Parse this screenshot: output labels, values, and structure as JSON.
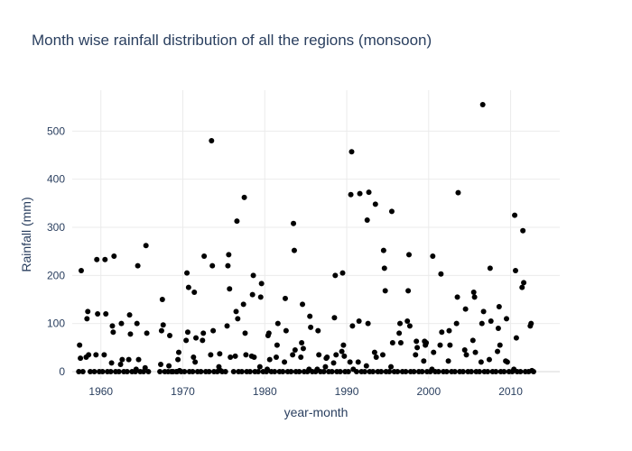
{
  "chart_data": {
    "type": "scatter",
    "title": "Month wise rainfall distribution of all the regions (monsoon)",
    "xlabel": "year-month",
    "ylabel": "Rainfall (mm)",
    "xlim": [
      1956.5,
      2016
    ],
    "ylim": [
      -15,
      585
    ],
    "xticks": [
      1960,
      1970,
      1980,
      1990,
      2000,
      2010
    ],
    "yticks": [
      0,
      100,
      200,
      300,
      400,
      500
    ],
    "grid": true,
    "legend": "none",
    "marker_color": "#000000",
    "points": [
      [
        1957.3,
        0
      ],
      [
        1957.4,
        55
      ],
      [
        1957.5,
        28
      ],
      [
        1957.6,
        210
      ],
      [
        1957.8,
        0
      ],
      [
        1958.2,
        30
      ],
      [
        1958.3,
        110
      ],
      [
        1958.4,
        125
      ],
      [
        1958.5,
        35
      ],
      [
        1958.7,
        0
      ],
      [
        1959.2,
        0
      ],
      [
        1959.4,
        35
      ],
      [
        1959.5,
        233
      ],
      [
        1959.6,
        120
      ],
      [
        1959.8,
        0
      ],
      [
        1960.2,
        0
      ],
      [
        1960.4,
        35
      ],
      [
        1960.5,
        233
      ],
      [
        1960.6,
        120
      ],
      [
        1960.8,
        0
      ],
      [
        1961.2,
        0
      ],
      [
        1961.3,
        18
      ],
      [
        1961.4,
        95
      ],
      [
        1961.5,
        82
      ],
      [
        1961.6,
        240
      ],
      [
        1961.8,
        0
      ],
      [
        1962.2,
        0
      ],
      [
        1962.4,
        15
      ],
      [
        1962.5,
        100
      ],
      [
        1962.6,
        25
      ],
      [
        1962.8,
        0
      ],
      [
        1963.2,
        0
      ],
      [
        1963.4,
        25
      ],
      [
        1963.5,
        118
      ],
      [
        1963.6,
        78
      ],
      [
        1963.8,
        0
      ],
      [
        1964.2,
        0
      ],
      [
        1964.3,
        5
      ],
      [
        1964.4,
        100
      ],
      [
        1964.5,
        220
      ],
      [
        1964.6,
        25
      ],
      [
        1964.8,
        0
      ],
      [
        1965.2,
        0
      ],
      [
        1965.4,
        8
      ],
      [
        1965.5,
        262
      ],
      [
        1965.6,
        80
      ],
      [
        1965.8,
        0
      ],
      [
        1967.2,
        0
      ],
      [
        1967.3,
        15
      ],
      [
        1967.4,
        85
      ],
      [
        1967.5,
        150
      ],
      [
        1967.6,
        97
      ],
      [
        1967.8,
        0
      ],
      [
        1968.2,
        0
      ],
      [
        1968.3,
        12
      ],
      [
        1968.4,
        75
      ],
      [
        1968.6,
        0
      ],
      [
        1968.8,
        0
      ],
      [
        1969.2,
        0
      ],
      [
        1969.3,
        0
      ],
      [
        1969.4,
        25
      ],
      [
        1969.5,
        40
      ],
      [
        1969.6,
        2
      ],
      [
        1969.8,
        0
      ],
      [
        1970.2,
        0
      ],
      [
        1970.4,
        65
      ],
      [
        1970.5,
        205
      ],
      [
        1970.6,
        82
      ],
      [
        1970.7,
        175
      ],
      [
        1970.8,
        0
      ],
      [
        1971.2,
        0
      ],
      [
        1971.3,
        30
      ],
      [
        1971.4,
        165
      ],
      [
        1971.5,
        20
      ],
      [
        1971.6,
        70
      ],
      [
        1971.8,
        0
      ],
      [
        1972.2,
        0
      ],
      [
        1972.4,
        65
      ],
      [
        1972.5,
        80
      ],
      [
        1972.6,
        240
      ],
      [
        1972.8,
        0
      ],
      [
        1973.2,
        0
      ],
      [
        1973.4,
        35
      ],
      [
        1973.5,
        480
      ],
      [
        1973.6,
        220
      ],
      [
        1973.7,
        85
      ],
      [
        1973.8,
        0
      ],
      [
        1974.2,
        0
      ],
      [
        1974.4,
        10
      ],
      [
        1974.5,
        37
      ],
      [
        1974.6,
        2
      ],
      [
        1974.8,
        0
      ],
      [
        1975.2,
        0
      ],
      [
        1975.4,
        95
      ],
      [
        1975.5,
        220
      ],
      [
        1975.6,
        243
      ],
      [
        1975.7,
        172
      ],
      [
        1975.8,
        30
      ],
      [
        1976.2,
        0
      ],
      [
        1976.4,
        32
      ],
      [
        1976.5,
        125
      ],
      [
        1976.6,
        313
      ],
      [
        1976.7,
        110
      ],
      [
        1976.8,
        0
      ],
      [
        1977.2,
        0
      ],
      [
        1977.4,
        140
      ],
      [
        1977.5,
        362
      ],
      [
        1977.6,
        80
      ],
      [
        1977.7,
        35
      ],
      [
        1977.8,
        0
      ],
      [
        1978.2,
        0
      ],
      [
        1978.4,
        32
      ],
      [
        1978.5,
        160
      ],
      [
        1978.6,
        200
      ],
      [
        1978.7,
        30
      ],
      [
        1978.8,
        0
      ],
      [
        1979.2,
        0
      ],
      [
        1979.4,
        10
      ],
      [
        1979.5,
        155
      ],
      [
        1979.6,
        183
      ],
      [
        1979.8,
        0
      ],
      [
        1980.2,
        0
      ],
      [
        1980.3,
        5
      ],
      [
        1980.4,
        75
      ],
      [
        1980.5,
        80
      ],
      [
        1980.6,
        25
      ],
      [
        1980.8,
        0
      ],
      [
        1981.2,
        0
      ],
      [
        1981.4,
        30
      ],
      [
        1981.5,
        55
      ],
      [
        1981.6,
        100
      ],
      [
        1981.8,
        0
      ],
      [
        1982.2,
        0
      ],
      [
        1982.4,
        20
      ],
      [
        1982.5,
        152
      ],
      [
        1982.6,
        85
      ],
      [
        1982.8,
        0
      ],
      [
        1983.2,
        0
      ],
      [
        1983.4,
        35
      ],
      [
        1983.5,
        308
      ],
      [
        1983.6,
        252
      ],
      [
        1983.7,
        45
      ],
      [
        1983.8,
        0
      ],
      [
        1984.2,
        0
      ],
      [
        1984.4,
        30
      ],
      [
        1984.5,
        60
      ],
      [
        1984.6,
        140
      ],
      [
        1984.7,
        48
      ],
      [
        1984.8,
        0
      ],
      [
        1985.2,
        0
      ],
      [
        1985.4,
        5
      ],
      [
        1985.5,
        115
      ],
      [
        1985.6,
        92
      ],
      [
        1985.8,
        0
      ],
      [
        1986.2,
        0
      ],
      [
        1986.4,
        5
      ],
      [
        1986.5,
        85
      ],
      [
        1986.6,
        35
      ],
      [
        1986.8,
        0
      ],
      [
        1987.2,
        0
      ],
      [
        1987.4,
        10
      ],
      [
        1987.5,
        28
      ],
      [
        1987.6,
        30
      ],
      [
        1987.8,
        0
      ],
      [
        1988.2,
        0
      ],
      [
        1988.4,
        18
      ],
      [
        1988.5,
        112
      ],
      [
        1988.6,
        200
      ],
      [
        1988.7,
        35
      ],
      [
        1988.8,
        0
      ],
      [
        1989.2,
        0
      ],
      [
        1989.4,
        42
      ],
      [
        1989.5,
        205
      ],
      [
        1989.6,
        55
      ],
      [
        1989.7,
        32
      ],
      [
        1989.8,
        0
      ],
      [
        1990.2,
        0
      ],
      [
        1990.4,
        20
      ],
      [
        1990.5,
        368
      ],
      [
        1990.6,
        457
      ],
      [
        1990.7,
        95
      ],
      [
        1990.8,
        5
      ],
      [
        1991.2,
        0
      ],
      [
        1991.4,
        20
      ],
      [
        1991.5,
        105
      ],
      [
        1991.6,
        370
      ],
      [
        1991.8,
        0
      ],
      [
        1992.2,
        0
      ],
      [
        1992.4,
        12
      ],
      [
        1992.5,
        315
      ],
      [
        1992.6,
        100
      ],
      [
        1992.7,
        373
      ],
      [
        1992.8,
        0
      ],
      [
        1993.2,
        0
      ],
      [
        1993.4,
        40
      ],
      [
        1993.5,
        348
      ],
      [
        1993.6,
        30
      ],
      [
        1993.8,
        0
      ],
      [
        1994.2,
        0
      ],
      [
        1994.4,
        35
      ],
      [
        1994.5,
        252
      ],
      [
        1994.6,
        215
      ],
      [
        1994.7,
        168
      ],
      [
        1994.8,
        0
      ],
      [
        1995.2,
        0
      ],
      [
        1995.4,
        10
      ],
      [
        1995.5,
        333
      ],
      [
        1995.6,
        60
      ],
      [
        1995.8,
        0
      ],
      [
        1996.2,
        0
      ],
      [
        1996.4,
        80
      ],
      [
        1996.5,
        100
      ],
      [
        1996.6,
        60
      ],
      [
        1996.8,
        0
      ],
      [
        1997.2,
        0
      ],
      [
        1997.4,
        105
      ],
      [
        1997.5,
        168
      ],
      [
        1997.6,
        243
      ],
      [
        1997.7,
        95
      ],
      [
        1997.8,
        0
      ],
      [
        1998.2,
        0
      ],
      [
        1998.4,
        35
      ],
      [
        1998.5,
        63
      ],
      [
        1998.6,
        50
      ],
      [
        1998.8,
        0
      ],
      [
        1999.2,
        0
      ],
      [
        1999.4,
        22
      ],
      [
        1999.5,
        63
      ],
      [
        1999.6,
        55
      ],
      [
        1999.7,
        60
      ],
      [
        1999.8,
        0
      ],
      [
        2000.2,
        0
      ],
      [
        2000.4,
        5
      ],
      [
        2000.5,
        240
      ],
      [
        2000.6,
        40
      ],
      [
        2000.8,
        0
      ],
      [
        2001.2,
        0
      ],
      [
        2001.4,
        55
      ],
      [
        2001.5,
        203
      ],
      [
        2001.6,
        82
      ],
      [
        2001.8,
        0
      ],
      [
        2002.2,
        0
      ],
      [
        2002.4,
        22
      ],
      [
        2002.5,
        85
      ],
      [
        2002.6,
        55
      ],
      [
        2002.8,
        0
      ],
      [
        2003.2,
        0
      ],
      [
        2003.4,
        100
      ],
      [
        2003.5,
        155
      ],
      [
        2003.6,
        372
      ],
      [
        2003.8,
        0
      ],
      [
        2004.2,
        0
      ],
      [
        2004.4,
        45
      ],
      [
        2004.5,
        130
      ],
      [
        2004.6,
        35
      ],
      [
        2004.8,
        0
      ],
      [
        2005.2,
        0
      ],
      [
        2005.4,
        65
      ],
      [
        2005.5,
        165
      ],
      [
        2005.6,
        155
      ],
      [
        2005.7,
        40
      ],
      [
        2005.8,
        0
      ],
      [
        2006.2,
        0
      ],
      [
        2006.4,
        20
      ],
      [
        2006.5,
        100
      ],
      [
        2006.6,
        555
      ],
      [
        2006.7,
        125
      ],
      [
        2006.8,
        0
      ],
      [
        2007.2,
        0
      ],
      [
        2007.4,
        25
      ],
      [
        2007.5,
        215
      ],
      [
        2007.6,
        105
      ],
      [
        2007.8,
        0
      ],
      [
        2008.2,
        0
      ],
      [
        2008.4,
        42
      ],
      [
        2008.5,
        90
      ],
      [
        2008.6,
        135
      ],
      [
        2008.7,
        55
      ],
      [
        2008.8,
        0
      ],
      [
        2009.2,
        0
      ],
      [
        2009.4,
        22
      ],
      [
        2009.5,
        110
      ],
      [
        2009.6,
        20
      ],
      [
        2009.8,
        0
      ],
      [
        2010.2,
        0
      ],
      [
        2010.4,
        5
      ],
      [
        2010.5,
        325
      ],
      [
        2010.6,
        210
      ],
      [
        2010.7,
        70
      ],
      [
        2010.8,
        0
      ],
      [
        2011.2,
        0
      ],
      [
        2011.4,
        175
      ],
      [
        2011.5,
        293
      ],
      [
        2011.6,
        185
      ],
      [
        2011.8,
        0
      ],
      [
        2012.2,
        0
      ],
      [
        2012.4,
        95
      ],
      [
        2012.5,
        100
      ],
      [
        2012.6,
        2
      ],
      [
        2012.8,
        0
      ]
    ]
  }
}
